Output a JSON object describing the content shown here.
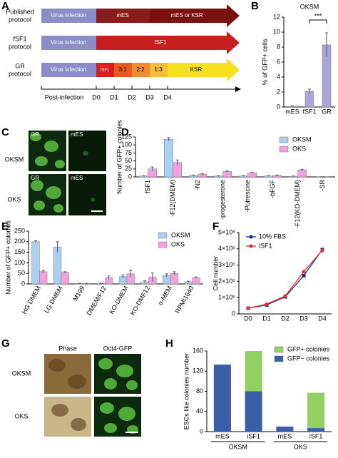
{
  "protocol_diagram": {
    "panel": "A",
    "rows": [
      {
        "label": [
          "Published",
          "protocol"
        ],
        "segments": [
          "Virus infection",
          "mES",
          "mES or KSR"
        ]
      },
      {
        "label": [
          "fSF1",
          "protocol"
        ],
        "segments": [
          "Virus infection",
          "fSF1"
        ]
      },
      {
        "label": [
          "GR",
          "protocol"
        ],
        "segments": [
          "Virus infection",
          "fSF1",
          "3:1",
          "2:2",
          "1:3",
          "KSR"
        ]
      }
    ],
    "timeline": {
      "label": "Post-infection",
      "ticks": [
        "D0",
        "D1",
        "D2",
        "D3",
        "D4"
      ]
    }
  },
  "image_panel_c": {
    "panel": "C",
    "rows": [
      "OKSM",
      "OKS"
    ],
    "tiles": [
      [
        "GR",
        "mES"
      ],
      [
        "GR",
        "mES"
      ]
    ]
  },
  "image_panel_g": {
    "panel": "G",
    "columns": [
      "Phase",
      "Oct4-GFP"
    ],
    "rows": [
      "OKSM",
      "OKS"
    ]
  },
  "chart_data": [
    {
      "type": "bar",
      "panel": "B",
      "title": "OKSM",
      "y_label": "% of GFP+ cells",
      "categories": [
        "mES",
        "fSF1",
        "GR"
      ],
      "values": [
        0.1,
        2.1,
        8.3
      ],
      "errors": [
        0.05,
        0.3,
        1.6
      ],
      "color": "#aaa7d8",
      "ylim": [
        0,
        12
      ],
      "yticks": [
        0,
        2,
        4,
        6,
        8,
        10,
        12
      ],
      "annotation": "***"
    },
    {
      "type": "bar",
      "panel": "D",
      "y_label": "Number of GFP+ colonies",
      "categories": [
        "fSF1",
        "-F12(DMEM)",
        "-N2",
        "-progesterone",
        "-Putrescine",
        "-bFGF",
        "-F12(KO-DMEM)",
        "-SR"
      ],
      "series": [
        {
          "name": "OKSM",
          "color": "#a9d0f2",
          "values": [
            3,
            118,
            5,
            3,
            3,
            3,
            2,
            0
          ],
          "errors": [
            1,
            5,
            1,
            1,
            1,
            1,
            1,
            0
          ]
        },
        {
          "name": "OKS",
          "color": "#f0a3da",
          "values": [
            25,
            45,
            8,
            17,
            13,
            5,
            22,
            0
          ],
          "errors": [
            6,
            8,
            2,
            2,
            1,
            1,
            2,
            0
          ]
        }
      ],
      "ylim": [
        0,
        125
      ],
      "yticks": [
        0,
        25,
        50,
        75,
        100,
        125
      ]
    },
    {
      "type": "bar",
      "panel": "E",
      "y_label": "Number of GFP+ colonies",
      "categories": [
        "HG DMEM",
        "LG DMEM",
        "M199",
        "DMEM/F12",
        "KO-DMEM",
        "KO-DMF12",
        "α-MEM",
        "RPMI1640"
      ],
      "series": [
        {
          "name": "OKSM",
          "color": "#a9d0f2",
          "values": [
            200,
            175,
            2,
            2,
            35,
            10,
            40,
            10
          ],
          "errors": [
            5,
            25,
            1,
            1,
            8,
            5,
            8,
            3
          ]
        },
        {
          "name": "OKS",
          "color": "#f0a3da",
          "values": [
            58,
            55,
            2,
            30,
            48,
            32,
            50,
            30
          ],
          "errors": [
            5,
            3,
            1,
            8,
            15,
            20,
            8,
            3
          ]
        }
      ],
      "ylim": [
        0,
        250
      ],
      "yticks": [
        0,
        50,
        100,
        150,
        200,
        250
      ]
    },
    {
      "type": "line",
      "panel": "F",
      "y_label": "Cell number",
      "categories": [
        "D0",
        "D1",
        "D2",
        "D3",
        "D4"
      ],
      "series": [
        {
          "name": "10% FBS",
          "color": "#1f2a8a",
          "marker": "square",
          "values": [
            35000,
            55000,
            105000,
            235000,
            395000
          ]
        },
        {
          "name": "iSF1",
          "color": "#e03030",
          "marker": "circle",
          "values": [
            35000,
            60000,
            110000,
            260000,
            390000
          ]
        }
      ],
      "ylim": [
        0,
        500000
      ],
      "yticks": [
        0,
        {
          "value": 100000,
          "label": "1×10⁵"
        },
        {
          "value": 200000,
          "label": "2×10⁵"
        },
        {
          "value": 300000,
          "label": "3×10⁵"
        },
        {
          "value": 400000,
          "label": "4×10⁵"
        },
        {
          "value": 500000,
          "label": "5×10⁵"
        }
      ]
    },
    {
      "type": "bar",
      "panel": "H",
      "stacked": true,
      "y_label": "ESCs like colonies number",
      "categories": [
        "mES",
        "iSF1",
        "mES",
        "iSF1"
      ],
      "groups": [
        "OKSM",
        "OKS"
      ],
      "series": [
        {
          "name": "GFP− colonies",
          "color": "#3a5ea8",
          "values": [
            133,
            80,
            10,
            7
          ]
        },
        {
          "name": "GFP+ colonies",
          "color": "#92d062",
          "values": [
            0,
            80,
            0,
            70
          ]
        }
      ],
      "ylim": [
        0,
        160
      ],
      "yticks": [
        0,
        40,
        80,
        120,
        160
      ]
    }
  ]
}
